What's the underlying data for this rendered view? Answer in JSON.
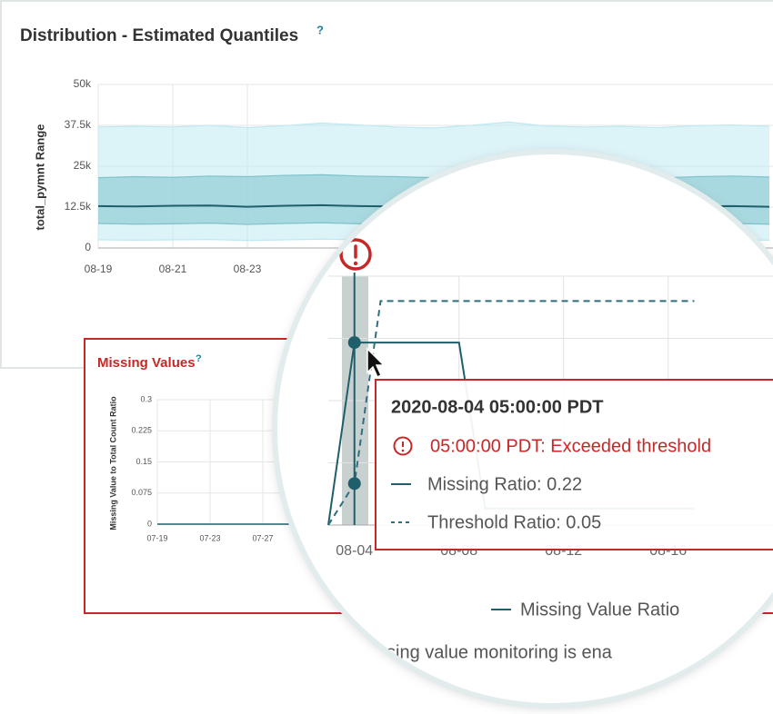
{
  "distribution": {
    "type": "band",
    "title": "Distribution - Estimated Quantiles",
    "help": "?",
    "y_label": "total_pymnt Range",
    "x": [
      "08-19",
      null,
      "08-21",
      null,
      "08-23",
      null,
      null,
      null,
      null,
      null,
      null,
      null,
      null,
      null,
      null,
      null,
      null,
      null,
      null
    ],
    "ylim": [
      0,
      50000
    ],
    "yticks": [
      0,
      {
        "value": 12500,
        "label": "12.5k"
      },
      {
        "value": 25000,
        "label": "25k"
      },
      {
        "value": 37500,
        "label": "37.5k"
      },
      {
        "value": 50000,
        "label": "50k"
      }
    ],
    "grid": true,
    "series": [
      {
        "color": "#bfe9f2",
        "values": [
          2500,
          2400,
          2500,
          2600,
          2300,
          2500,
          2700,
          2500,
          2400,
          2300,
          2500,
          2600,
          2400,
          2400,
          2300,
          2200,
          2400,
          2500,
          2400
        ]
      },
      {
        "color": "#7fc2cc",
        "values": [
          7500,
          7300,
          7400,
          7600,
          7200,
          7500,
          7700,
          7400,
          7300,
          7200,
          7500,
          7700,
          7400,
          7300,
          7200,
          7100,
          7400,
          7500,
          7300
        ]
      },
      {
        "color": "#1f5f6b",
        "values": [
          12800,
          12700,
          12900,
          13000,
          12600,
          12900,
          13100,
          12800,
          12700,
          12500,
          12800,
          13000,
          12700,
          12800,
          12600,
          12500,
          12700,
          12800,
          12600
        ]
      },
      {
        "color": "#7fc2cc",
        "values": [
          21500,
          21800,
          21600,
          22000,
          21800,
          22200,
          22400,
          22000,
          21800,
          21500,
          22000,
          22400,
          21900,
          21800,
          21600,
          21400,
          21800,
          22000,
          21700
        ]
      },
      {
        "color": "#bfe9f2",
        "values": [
          37000,
          37200,
          37000,
          37500,
          36800,
          37400,
          38200,
          37600,
          37000,
          36700,
          37500,
          38500,
          37300,
          37000,
          37200,
          36800,
          37400,
          37600,
          37200
        ]
      }
    ]
  },
  "missing_values": {
    "type": "line",
    "title": "Missing Values",
    "help": "?",
    "y_label": "Missing Value to Total Count Ratio",
    "x": [
      "07-19",
      null,
      null,
      null,
      "07-23",
      null,
      null,
      null,
      "07-27",
      null,
      null,
      null,
      null,
      null
    ],
    "ylim": [
      0,
      0.3
    ],
    "yticks": [
      0,
      0.075,
      0.15,
      0.225,
      0.3
    ],
    "grid": true,
    "series": [
      {
        "color": "#1f5f6b",
        "values": [
          0,
          0,
          0,
          0,
          0,
          0,
          0,
          0,
          0,
          0,
          0,
          0,
          0,
          0
        ]
      }
    ]
  },
  "magnified": {
    "type": "line",
    "x": [
      null,
      "08-04",
      null,
      null,
      null,
      "08-08",
      null,
      null,
      null,
      "08-12",
      null,
      null,
      null,
      "08-16",
      null
    ],
    "ylim": [
      0,
      0.3
    ],
    "yticks": [
      0,
      0.075,
      0.15,
      0.225,
      0.3
    ],
    "grid": true,
    "series": [
      {
        "name": "Missing Value Ratio",
        "color": "#1f5f6b",
        "values": [
          0,
          0.22,
          0.22,
          0.22,
          0.22,
          0.22,
          0.02,
          0.02,
          0.02,
          0.02,
          0.02,
          0.02,
          0.02,
          0.02,
          0.02
        ]
      },
      {
        "color": "#2f6f7b",
        "dashed": true,
        "values": [
          0,
          0.05,
          0.27,
          0.27,
          0.27,
          0.27,
          0.27,
          0.27,
          0.27,
          0.27,
          0.27,
          0.27,
          0.27,
          0.27,
          0.27
        ]
      }
    ],
    "tooltip": {
      "title": "2020-08-04 05:00:00 PDT",
      "alert": "05:00:00 PDT: Exceeded threshold",
      "rows": [
        "Missing Ratio: 0.22",
        "Threshold Ratio: 0.05"
      ]
    },
    "footer": "sing value monitoring is ena"
  }
}
